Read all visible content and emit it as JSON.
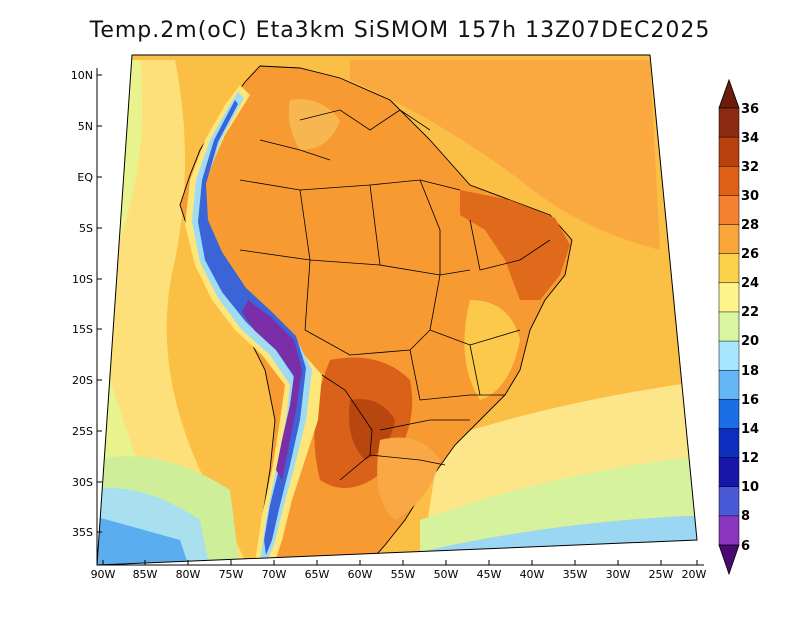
{
  "title": "Temp.2m(oC) Eta3km SiSMOM 157h 13Z07DEC2025",
  "axes": {
    "lat_labels": [
      "10N",
      "5N",
      "EQ",
      "5S",
      "10S",
      "15S",
      "20S",
      "25S",
      "30S",
      "35S"
    ],
    "lon_labels": [
      "90W",
      "85W",
      "80W",
      "75W",
      "70W",
      "65W",
      "60W",
      "55W",
      "50W",
      "45W",
      "40W",
      "35W",
      "30W",
      "25W",
      "20W"
    ]
  },
  "colorbar": {
    "labels": [
      "36",
      "34",
      "32",
      "30",
      "28",
      "26",
      "24",
      "22",
      "20",
      "18",
      "16",
      "14",
      "12",
      "10",
      "8",
      "6"
    ],
    "colors": [
      "#8b2a10",
      "#b8410f",
      "#e06016",
      "#f58230",
      "#f9a53a",
      "#fcd24a",
      "#fdf58a",
      "#d9f5a0",
      "#a8e6ff",
      "#62b6f5",
      "#1a6ee6",
      "#0c2dbd",
      "#1616a8",
      "#4a5ad6",
      "#8a36c0",
      "#5a108c"
    ]
  },
  "colors": {
    "sea_base": "#fbbf45",
    "land_base": "#f79a32",
    "border": "#000000"
  }
}
